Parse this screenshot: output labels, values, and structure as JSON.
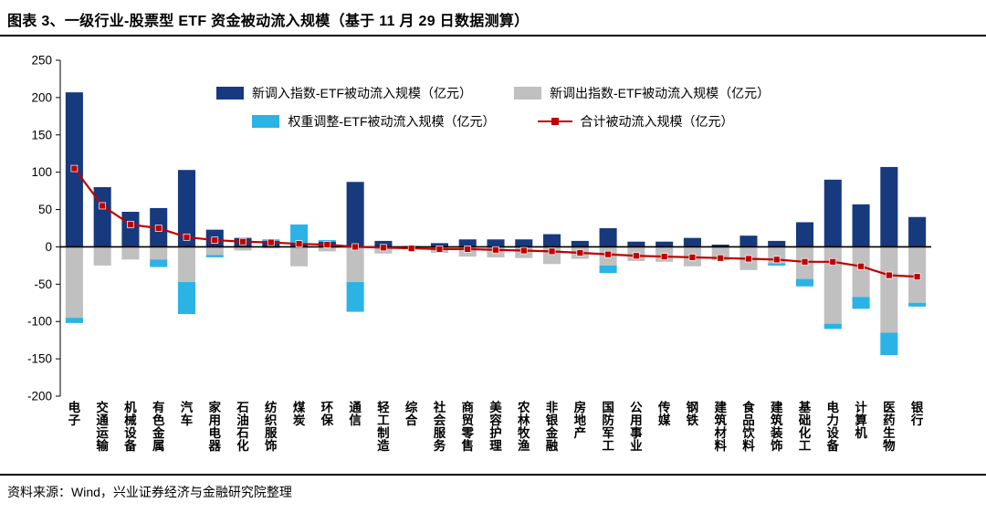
{
  "header": {
    "title": "图表 3、一级行业-股票型 ETF 资金被动流入规模（基于 11 月 29 日数据测算）"
  },
  "footer": {
    "source": "资料来源：Wind，兴业证券经济与金融研究院整理"
  },
  "chart_data": {
    "type": "bar",
    "stacked": true,
    "title": "一级行业-股票型 ETF 资金被动流入规模",
    "xlabel": "",
    "ylabel": "",
    "ylim": [
      -200,
      250
    ],
    "yticks": [
      250,
      200,
      150,
      100,
      50,
      0,
      -50,
      -100,
      -150,
      -200
    ],
    "grid": false,
    "legend_position": "top",
    "categories": [
      "电子",
      "交通运输",
      "机械设备",
      "有色金属",
      "汽车",
      "家用电器",
      "石油石化",
      "纺织服饰",
      "煤炭",
      "环保",
      "通信",
      "轻工制造",
      "综合",
      "社会服务",
      "商贸零售",
      "美容护理",
      "农林牧渔",
      "非银金融",
      "房地产",
      "国防军工",
      "公用事业",
      "传媒",
      "钢铁",
      "建筑材料",
      "食品饮料",
      "建筑装饰",
      "基础化工",
      "电力设备",
      "计算机",
      "医药生物",
      "银行"
    ],
    "series": [
      {
        "name": "新调入指数-ETF被动流入规模（亿元）",
        "type": "bar",
        "color": "#163a7d",
        "values": [
          207,
          80,
          47,
          52,
          103,
          23,
          12,
          8,
          5,
          7,
          87,
          8,
          1,
          5,
          10,
          10,
          10,
          17,
          8,
          25,
          7,
          7,
          12,
          3,
          15,
          8,
          33,
          90,
          57,
          107,
          40
        ]
      },
      {
        "name": "新调出指数-ETF被动流入规模（亿元）",
        "type": "bar",
        "color": "#c0c0c0",
        "values": [
          -95,
          -25,
          -17,
          -17,
          -47,
          -11,
          -5,
          -2,
          -26,
          -6,
          -47,
          -9,
          -3,
          -8,
          -13,
          -14,
          -15,
          -23,
          -16,
          -25,
          -19,
          -20,
          -26,
          -18,
          -31,
          -22,
          -43,
          -103,
          -67,
          -115,
          -75
        ]
      },
      {
        "name": "权重调整-ETF被动流入规模（亿元）",
        "type": "bar",
        "color": "#2bb3e6",
        "values": [
          -7,
          0,
          0,
          -10,
          -43,
          -3,
          0,
          2,
          25,
          2,
          -40,
          0,
          0,
          0,
          0,
          0,
          0,
          0,
          0,
          -10,
          0,
          0,
          0,
          0,
          0,
          -3,
          -10,
          -7,
          -16,
          -30,
          -5
        ]
      },
      {
        "name": "合计被动流入规模（亿元）",
        "type": "line",
        "color": "#c00000",
        "values": [
          105,
          55,
          30,
          25,
          13,
          9,
          7,
          6,
          4,
          3,
          0,
          -1,
          -2,
          -3,
          -3,
          -4,
          -5,
          -6,
          -8,
          -10,
          -12,
          -13,
          -14,
          -15,
          -16,
          -17,
          -20,
          -20,
          -26,
          -38,
          -40
        ]
      }
    ]
  }
}
